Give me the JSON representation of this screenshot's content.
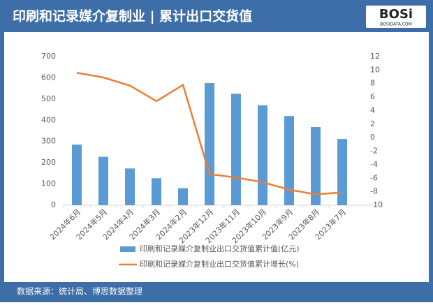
{
  "header": {
    "title": "印刷和记录媒介复制业 | 累计出口交货值",
    "logo": "BOSi",
    "logo_sub": "BOSIDATA.COM"
  },
  "footer": {
    "source": "数据来源：统计局、博思数据整理"
  },
  "chart_data": {
    "type": "bar_line",
    "categories": [
      "2024年6月",
      "2024年5月",
      "2024年4月",
      "2024年3月",
      "2024年2月",
      "2023年12月",
      "2023年11月",
      "2023年10月",
      "2023年9月",
      "2023年8月",
      "2023年7月"
    ],
    "series": [
      {
        "name": "印刷和记录媒介复制业出口交货值累计值(亿元)",
        "type": "bar",
        "color": "#5b9bd5",
        "values": [
          285,
          228,
          173,
          127,
          80,
          575,
          525,
          470,
          420,
          368,
          312
        ]
      },
      {
        "name": "印刷和记录媒介复制业出口交货值累计增长(%)",
        "type": "line",
        "axis": "y2",
        "color": "#ed7d31",
        "values": [
          9.6,
          8.9,
          7.7,
          5.4,
          7.8,
          -5.4,
          -5.9,
          -6.6,
          -7.7,
          -8.4,
          -8.1
        ]
      }
    ],
    "ylim": [
      0,
      700
    ],
    "yticks": [
      0,
      100,
      200,
      300,
      400,
      500,
      600,
      700
    ],
    "y2lim": [
      -10,
      12
    ],
    "y2ticks": [
      -10,
      -8,
      -6,
      -4,
      -2,
      0,
      2,
      4,
      6,
      8,
      10,
      12
    ],
    "legend": "bottom"
  }
}
